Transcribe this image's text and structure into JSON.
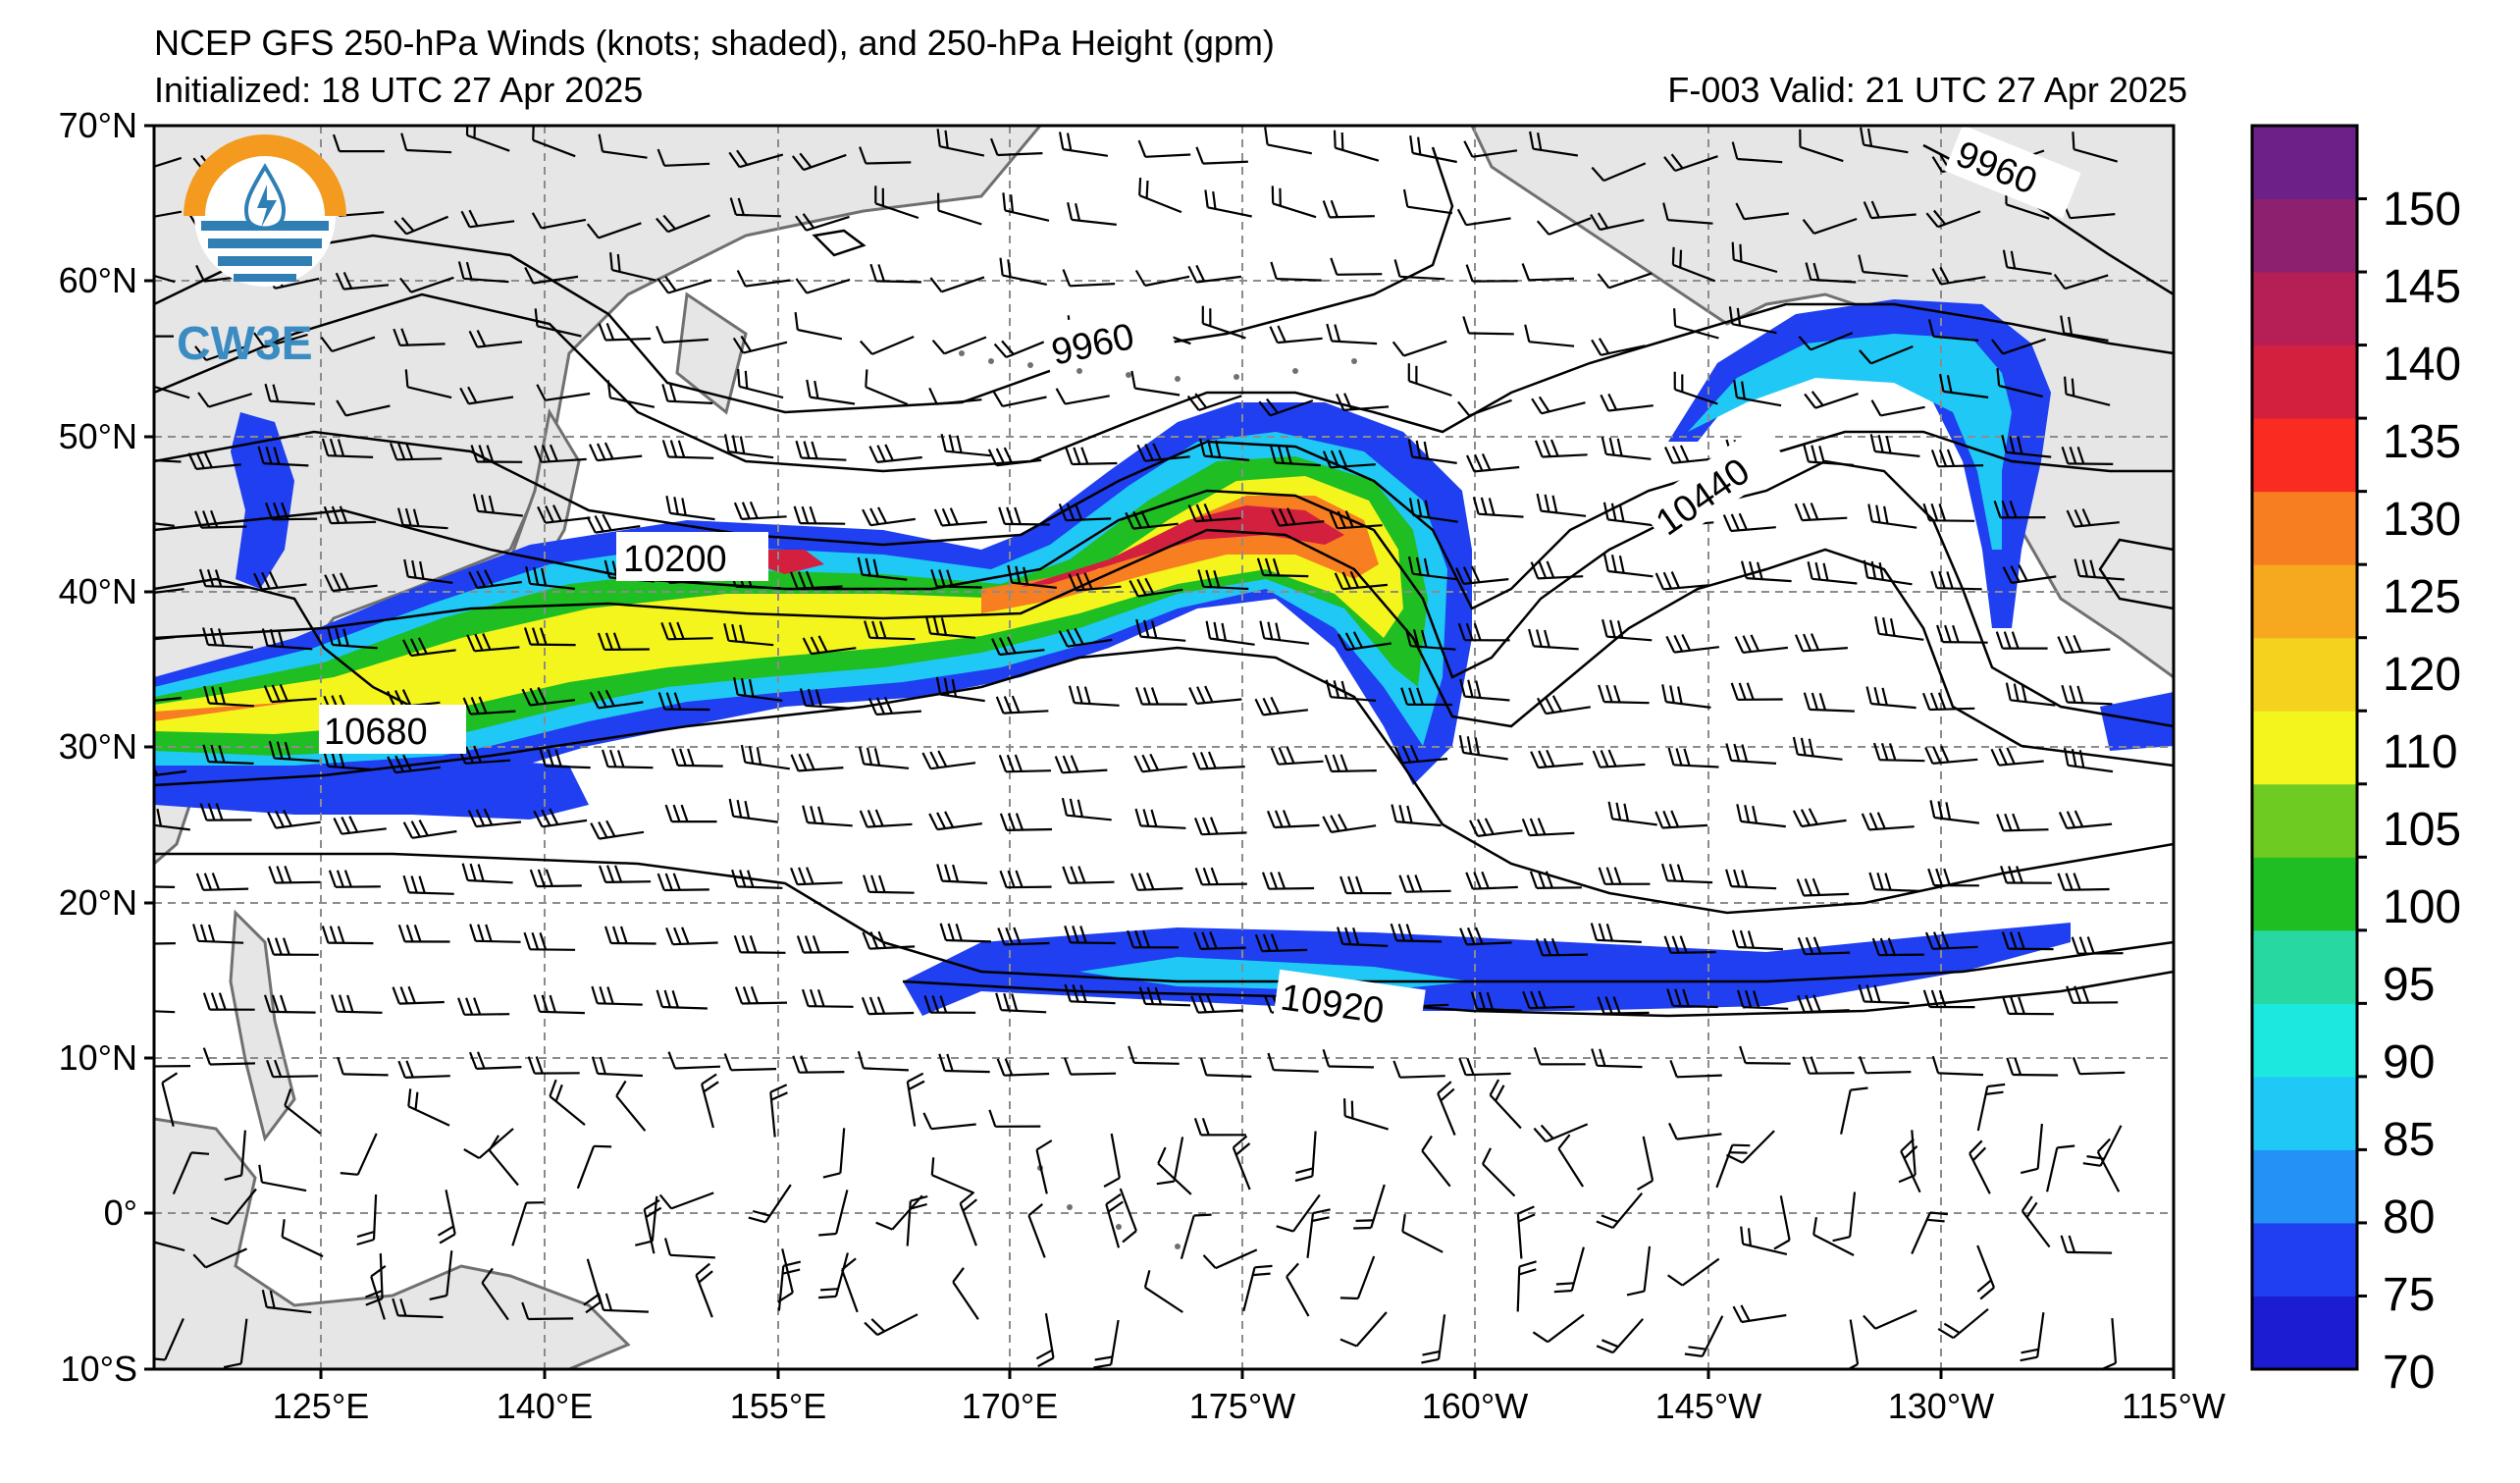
{
  "title": {
    "line1": "NCEP GFS 250-hPa Winds (knots; shaded), and 250-hPa Height (gpm)",
    "init": "Initialized: 18 UTC 27 Apr 2025",
    "valid": "F-003  Valid: 21 UTC 27 Apr 2025"
  },
  "logo": {
    "text": "CW3E"
  },
  "map": {
    "lat_labels": [
      "70°N",
      "60°N",
      "50°N",
      "40°N",
      "30°N",
      "20°N",
      "10°N",
      "0°",
      "10°S"
    ],
    "lon_labels": [
      "125°E",
      "140°E",
      "155°E",
      "170°E",
      "175°W",
      "160°W",
      "145°W",
      "130°W",
      "115°W"
    ],
    "contour_labels": [
      "9960",
      "9960",
      "10200",
      "10680",
      "10440",
      "10920"
    ]
  },
  "colorbar": {
    "labels": [
      "150",
      "145",
      "140",
      "135",
      "130",
      "125",
      "120",
      "110",
      "105",
      "100",
      "95",
      "90",
      "85",
      "80",
      "75",
      "70"
    ],
    "bin_colors": [
      "#1c1cd2",
      "#1f3ff0",
      "#2391f6",
      "#20c8f5",
      "#1de8e0",
      "#27d9a0",
      "#1fbe23",
      "#6ecb21",
      "#f5f51e",
      "#f4d21d",
      "#f6a91f",
      "#f77e21",
      "#fa2c22",
      "#d3203e",
      "#b51f56",
      "#8d216f",
      "#6d2088"
    ]
  }
}
